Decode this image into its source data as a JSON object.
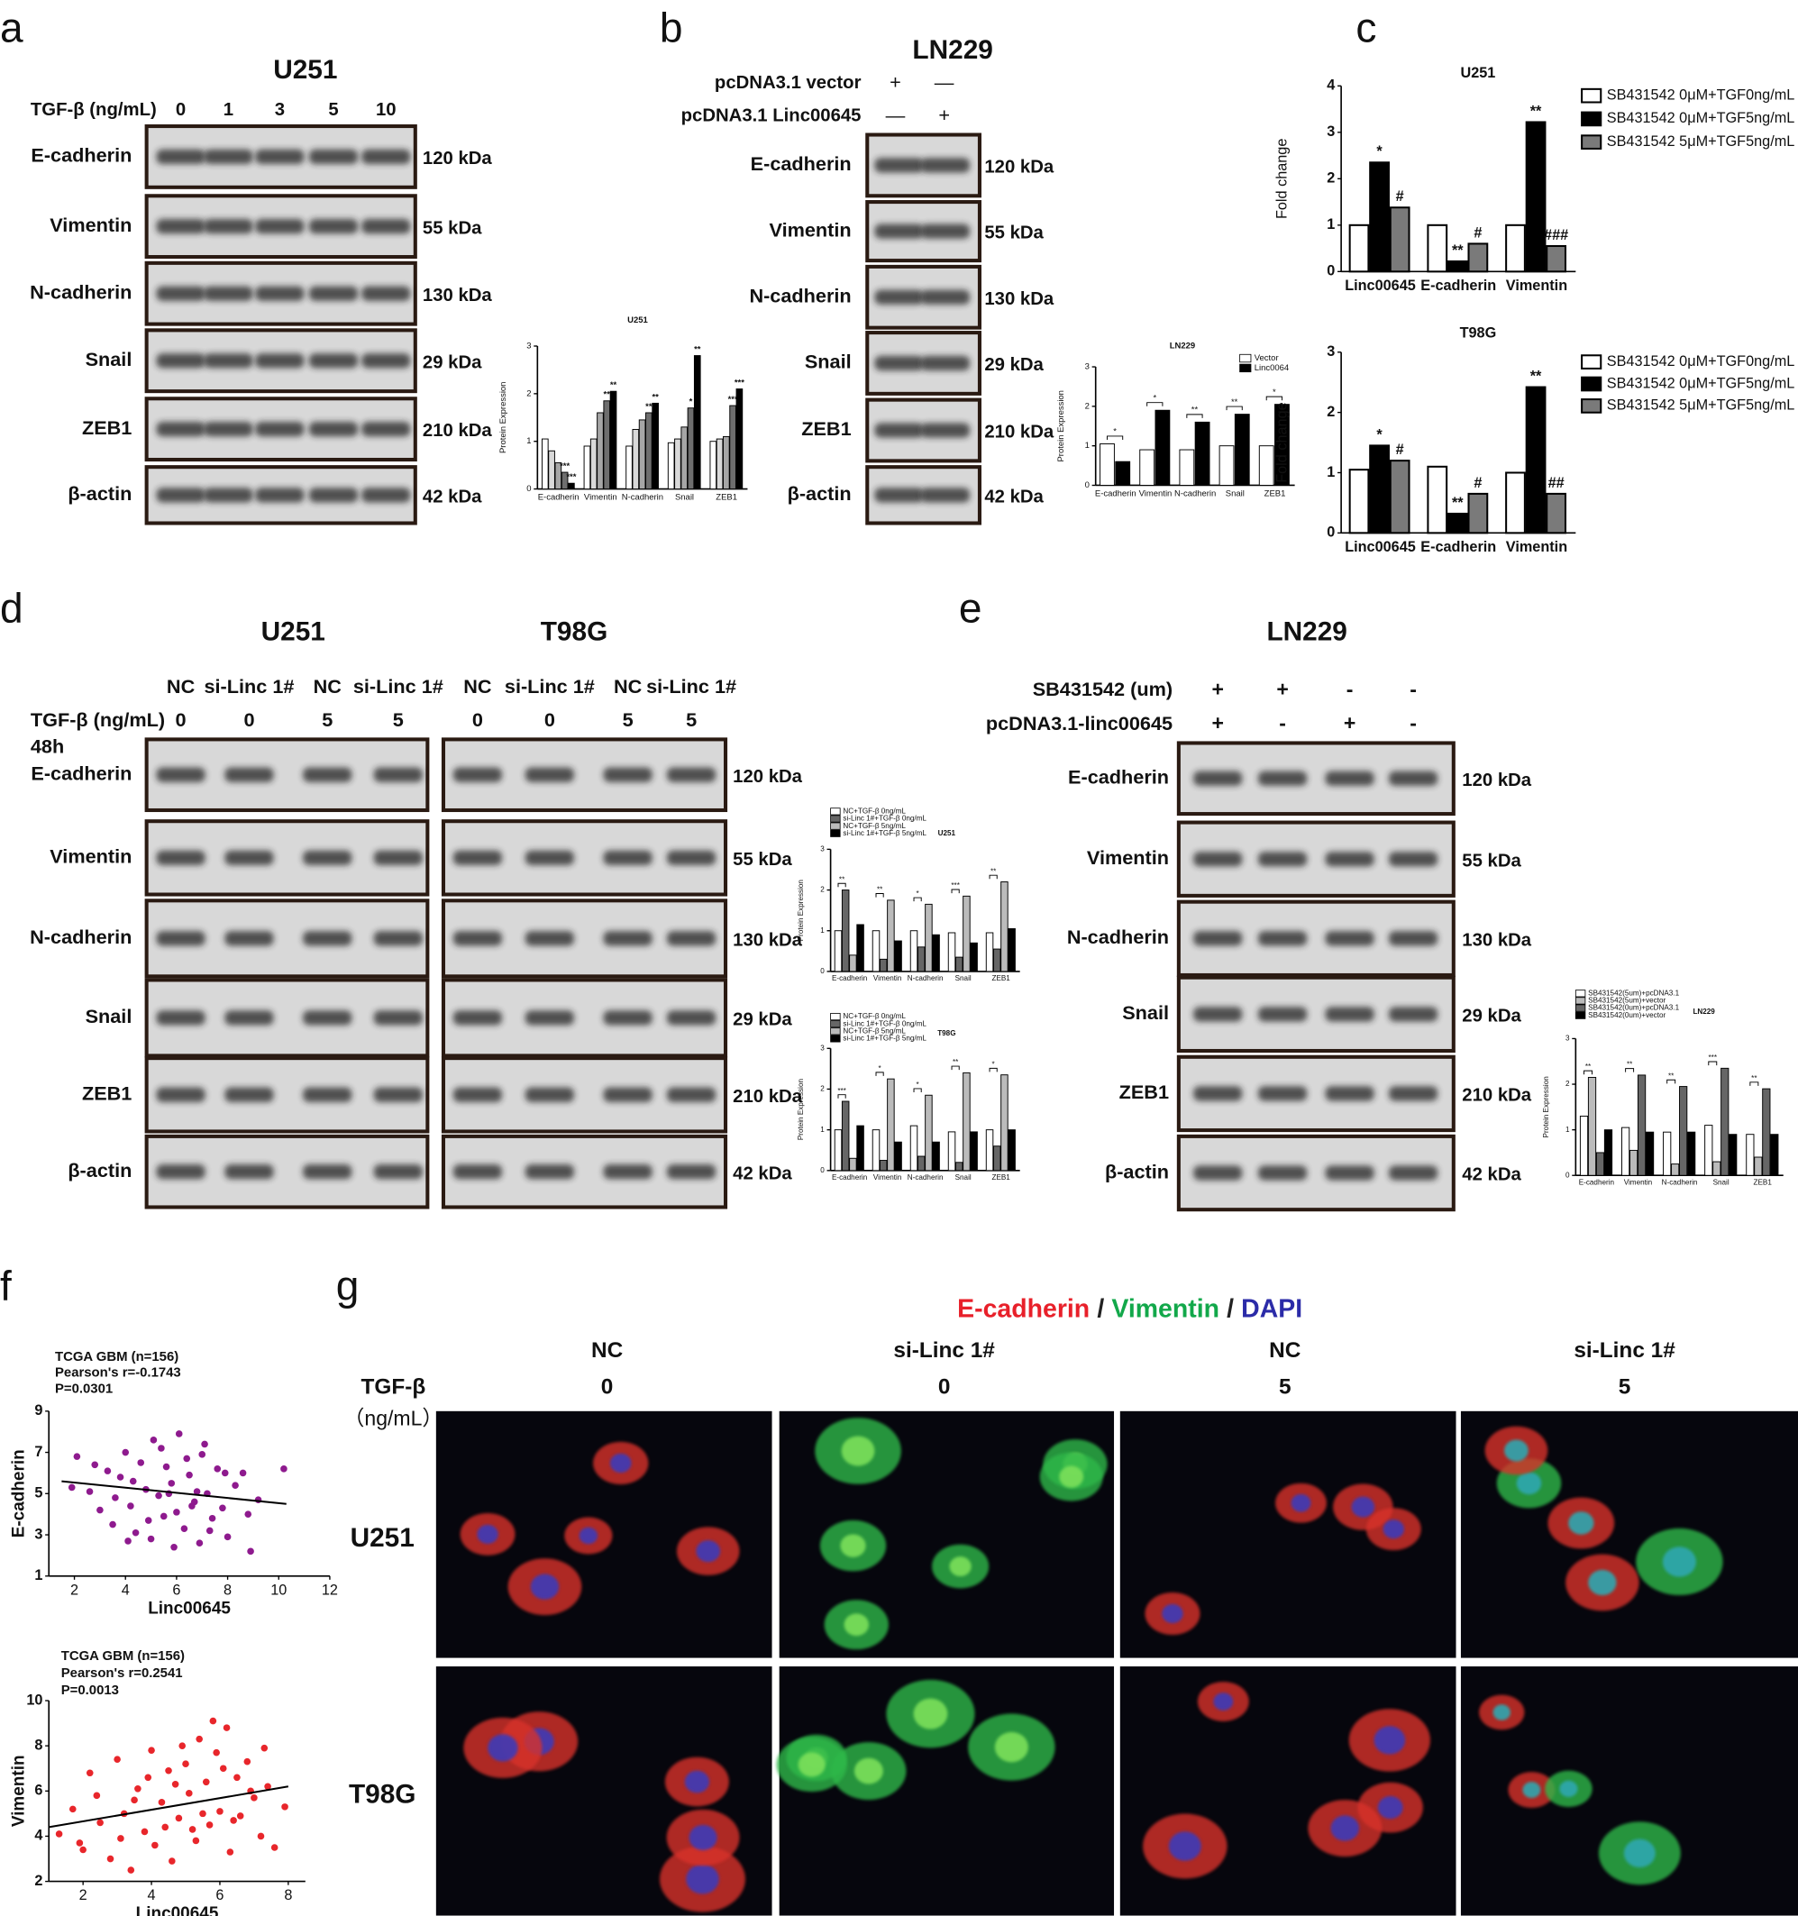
{
  "panel_labels": [
    "a",
    "b",
    "c",
    "d",
    "e",
    "f",
    "g"
  ],
  "blot_a": {
    "title": "U251",
    "treatment_label": "TGF-β (ng/mL)",
    "doses": [
      "0",
      "1",
      "3",
      "5",
      "10"
    ],
    "proteins": [
      "E-cadherin",
      "Vimentin",
      "N-cadherin",
      "Snail",
      "ZEB1",
      "β-actin"
    ],
    "sizes": [
      "120 kDa",
      "55 kDa",
      "130 kDa",
      "29 kDa",
      "210 kDa",
      "42 kDa"
    ]
  },
  "blot_b": {
    "title": "LN229",
    "rows": [
      {
        "label": "pcDNA3.1 vector",
        "marks": [
          "+",
          "—"
        ]
      },
      {
        "label": "pcDNA3.1 Linc00645",
        "marks": [
          "—",
          "+"
        ]
      }
    ],
    "proteins": [
      "E-cadherin",
      "Vimentin",
      "N-cadherin",
      "Snail",
      "ZEB1",
      "β-actin"
    ],
    "sizes": [
      "120 kDa",
      "55 kDa",
      "130 kDa",
      "29 kDa",
      "210 kDa",
      "42 kDa"
    ]
  },
  "blot_d": {
    "titles": [
      "U251",
      "T98G"
    ],
    "groups": [
      "NC",
      "si-Linc 1#",
      "NC",
      "si-Linc 1#",
      "NC",
      "si-Linc 1#",
      "NC",
      "si-Linc 1#"
    ],
    "treatment_label": "TGF-β (ng/mL)",
    "doses": [
      "0",
      "0",
      "5",
      "5",
      "0",
      "0",
      "5",
      "5"
    ],
    "time": "48h",
    "proteins": [
      "E-cadherin",
      "Vimentin",
      "N-cadherin",
      "Snail",
      "ZEB1",
      "β-actin"
    ],
    "sizes": [
      "120 kDa",
      "55 kDa",
      "130 kDa",
      "29 kDa",
      "210 kDa",
      "42 kDa"
    ]
  },
  "blot_e": {
    "title": "LN229",
    "rows": [
      {
        "label": "SB431542 (um)",
        "marks": [
          "+",
          "+",
          "-",
          "-"
        ]
      },
      {
        "label": "pcDNA3.1-linc00645",
        "marks": [
          "+",
          "-",
          "+",
          "-"
        ]
      }
    ],
    "proteins": [
      "E-cadherin",
      "Vimentin",
      "N-cadherin",
      "Snail",
      "ZEB1",
      "β-actin"
    ],
    "sizes": [
      "120 kDa",
      "55 kDa",
      "130 kDa",
      "29 kDa",
      "210 kDa",
      "42 kDa"
    ]
  },
  "chart_data": [
    {
      "type": "bar",
      "title": "U251",
      "y_label": "Protein Expression",
      "categories": [
        "E-cadherin",
        "Vimentin",
        "N-cadherin",
        "Snail",
        "ZEB1"
      ],
      "series": [
        {
          "color": "#ffffff",
          "values": [
            1.05,
            0.9,
            0.9,
            0.97,
            1.0
          ]
        },
        {
          "color": "#d9d9d9",
          "values": [
            0.8,
            1.05,
            1.25,
            1.05,
            1.05
          ]
        },
        {
          "color": "#a6a6a6",
          "values": [
            0.55,
            1.6,
            1.45,
            1.3,
            1.1
          ]
        },
        {
          "color": "#6e6e6e",
          "values": [
            0.35,
            1.85,
            1.6,
            1.7,
            1.75
          ],
          "significance": [
            "***",
            "**",
            "**",
            "*",
            "***"
          ]
        },
        {
          "color": "#000000",
          "values": [
            0.12,
            2.05,
            1.8,
            2.8,
            2.1
          ],
          "significance": [
            "***",
            "**",
            "**",
            "**",
            "***"
          ]
        }
      ],
      "ylim": [
        0,
        3
      ],
      "yticks": [
        0,
        1,
        2,
        3
      ]
    },
    {
      "type": "bar",
      "title": "LN229",
      "y_label": "Protein Expression",
      "categories": [
        "E-cadherin",
        "Vimentin",
        "N-cadherin",
        "Snail",
        "ZEB1"
      ],
      "series": [
        {
          "name": "Vector",
          "color": "#ffffff",
          "values": [
            1.05,
            0.9,
            0.9,
            1.0,
            1.0
          ]
        },
        {
          "name": "Linc0064",
          "color": "#000000",
          "values": [
            0.6,
            1.9,
            1.6,
            1.8,
            2.05
          ]
        }
      ],
      "brackets": [
        "*",
        "*",
        "**",
        "**",
        "*"
      ],
      "ylim": [
        0,
        3
      ],
      "yticks": [
        0,
        1,
        2,
        3
      ]
    },
    {
      "type": "bar",
      "title": "U251",
      "y_label": "Fold change",
      "categories": [
        "Linc00645",
        "E-cadherin",
        "Vimentin"
      ],
      "series": [
        {
          "name": "SB431542 0μM+TGF0ng/mL",
          "color": "#ffffff",
          "values": [
            1.0,
            1.0,
            1.0
          ]
        },
        {
          "name": "SB431542 0μM+TGF5ng/mL",
          "color": "#000000",
          "values": [
            2.35,
            0.22,
            3.22
          ],
          "significance": [
            "*",
            "**",
            "**"
          ]
        },
        {
          "name": "SB431542 5μM+TGF5ng/mL",
          "color": "#7a7a7a",
          "values": [
            1.38,
            0.6,
            0.55
          ],
          "significance": [
            "#",
            "#",
            "###"
          ]
        }
      ],
      "ylim": [
        0,
        4
      ],
      "yticks": [
        0,
        1,
        2,
        3,
        4
      ]
    },
    {
      "type": "bar",
      "title": "T98G",
      "y_label": "Fold change",
      "categories": [
        "Linc00645",
        "E-cadherin",
        "Vimentin"
      ],
      "series": [
        {
          "name": "SB431542 0μM+TGF0ng/mL",
          "color": "#ffffff",
          "values": [
            1.05,
            1.1,
            1.0
          ]
        },
        {
          "name": "SB431542 0μM+TGF5ng/mL",
          "color": "#000000",
          "values": [
            1.45,
            0.32,
            2.42
          ],
          "significance": [
            "*",
            "**",
            "**"
          ]
        },
        {
          "name": "SB431542 5μM+TGF5ng/mL",
          "color": "#7a7a7a",
          "values": [
            1.2,
            0.65,
            0.65
          ],
          "significance": [
            "#",
            "#",
            "##"
          ]
        }
      ],
      "ylim": [
        0,
        3
      ],
      "yticks": [
        0,
        1,
        2,
        3
      ]
    },
    {
      "type": "bar",
      "title": "U251",
      "y_label": "Protein Expression",
      "categories": [
        "E-cadherin",
        "Vimentin",
        "N-cadherin",
        "Snail",
        "ZEB1"
      ],
      "series": [
        {
          "name": "NC+TGF-β 0ng/mL",
          "color": "#ffffff",
          "values": [
            1.0,
            1.0,
            1.0,
            0.95,
            0.95
          ]
        },
        {
          "name": "si-Linc 1#+TGF-β 0ng/mL",
          "color": "#666666",
          "values": [
            2.0,
            0.3,
            0.6,
            0.35,
            0.55
          ]
        },
        {
          "name": "NC+TGF-β 5ng/mL",
          "color": "#bbbbbb",
          "values": [
            0.4,
            1.75,
            1.65,
            1.85,
            2.2
          ]
        },
        {
          "name": "si-Linc 1#+TGF-β 5ng/mL",
          "color": "#000000",
          "values": [
            1.15,
            0.75,
            0.9,
            0.7,
            1.05
          ]
        }
      ],
      "brackets": [
        "**",
        "**",
        "*",
        "***",
        "**"
      ],
      "ylim": [
        0,
        3
      ],
      "yticks": [
        0,
        1,
        2,
        3
      ]
    },
    {
      "type": "bar",
      "title": "T98G",
      "y_label": "Protein Expression",
      "categories": [
        "E-cadherin",
        "Vimentin",
        "N-cadherin",
        "Snail",
        "ZEB1"
      ],
      "series": [
        {
          "name": "NC+TGF-β 0ng/mL",
          "color": "#ffffff",
          "values": [
            1.0,
            1.0,
            1.1,
            0.95,
            1.0
          ]
        },
        {
          "name": "si-Linc 1#+TGF-β 0ng/mL",
          "color": "#666666",
          "values": [
            1.7,
            0.25,
            0.35,
            0.2,
            0.6
          ]
        },
        {
          "name": "NC+TGF-β 5ng/mL",
          "color": "#bbbbbb",
          "values": [
            0.3,
            2.25,
            1.85,
            2.4,
            2.35
          ]
        },
        {
          "name": "si-Linc 1#+TGF-β 5ng/mL",
          "color": "#000000",
          "values": [
            1.1,
            0.7,
            0.7,
            0.95,
            1.0
          ]
        }
      ],
      "brackets": [
        "***",
        "*",
        "*",
        "**",
        "*"
      ],
      "ylim": [
        0,
        3
      ],
      "yticks": [
        0,
        1,
        2,
        3
      ]
    },
    {
      "type": "bar",
      "title": "LN229",
      "y_label": "Protein Expression",
      "categories": [
        "E-cadherin",
        "Vimentin",
        "N-cadherin",
        "Snail",
        "ZEB1"
      ],
      "series": [
        {
          "name": "SB431542(5um)+pcDNA3.1",
          "color": "#ffffff",
          "values": [
            1.3,
            1.05,
            0.95,
            1.1,
            0.9
          ]
        },
        {
          "name": "SB431542(5um)+vector",
          "color": "#bbbbbb",
          "values": [
            2.15,
            0.55,
            0.25,
            0.3,
            0.4
          ]
        },
        {
          "name": "SB431542(0um)+pcDNA3.1",
          "color": "#666666",
          "values": [
            0.5,
            2.2,
            1.95,
            2.35,
            1.9
          ]
        },
        {
          "name": "SB431542(0um)+vector",
          "color": "#000000",
          "values": [
            1.0,
            0.95,
            0.95,
            0.9,
            0.9
          ]
        }
      ],
      "brackets": [
        "**",
        "**",
        "**",
        "***",
        "**"
      ],
      "ylim": [
        0,
        3
      ],
      "yticks": [
        0,
        1,
        2,
        3
      ]
    },
    {
      "type": "scatter",
      "annotations": [
        "TCGA GBM (n=156)",
        "Pearson's r=-0.1743",
        "P=0.0301"
      ],
      "x_label": "Linc00645",
      "y_label": "E-cadherin",
      "color": "#8e1a8e",
      "x": [
        2.1,
        2.6,
        3.0,
        3.3,
        3.5,
        3.8,
        4.0,
        4.2,
        4.4,
        4.6,
        4.8,
        5.0,
        5.1,
        5.3,
        5.5,
        5.6,
        5.8,
        6.0,
        6.1,
        6.3,
        6.5,
        6.7,
        6.9,
        7.0,
        7.2,
        7.4,
        7.6,
        7.8,
        8.0,
        8.3,
        8.6,
        8.9,
        9.2,
        10.2,
        2.8,
        3.6,
        4.3,
        4.9,
        5.4,
        5.9,
        6.4,
        6.8,
        7.3,
        7.9,
        8.8,
        1.9,
        4.1,
        5.7,
        6.6,
        7.1
      ],
      "values": [
        6.8,
        5.1,
        4.2,
        6.1,
        3.5,
        5.8,
        7.0,
        4.4,
        3.1,
        6.5,
        5.2,
        2.8,
        7.6,
        4.9,
        3.9,
        6.3,
        5.5,
        4.1,
        7.9,
        3.3,
        5.9,
        4.6,
        2.6,
        6.9,
        5.0,
        3.8,
        6.2,
        4.3,
        2.9,
        5.4,
        6.0,
        2.2,
        4.7,
        6.2,
        6.4,
        4.8,
        5.6,
        3.7,
        7.2,
        2.4,
        6.7,
        5.1,
        3.2,
        6.0,
        4.0,
        5.3,
        2.7,
        5.0,
        4.4,
        7.4
      ],
      "fit": {
        "x": [
          1.5,
          10.3
        ],
        "y": [
          5.6,
          4.5
        ]
      },
      "xlim": [
        1,
        12
      ],
      "xticks": [
        2,
        4,
        6,
        8,
        10,
        12
      ],
      "ylim": [
        1,
        9
      ],
      "yticks": [
        1,
        3,
        5,
        7,
        9
      ]
    },
    {
      "type": "scatter",
      "annotations": [
        "TCGA GBM (n=156)",
        "Pearson's r=0.2541",
        "P=0.0013"
      ],
      "x_label": "Linc00645",
      "y_label": "Vimentin",
      "color": "#e8262b",
      "x": [
        1.3,
        1.7,
        2.0,
        2.2,
        2.5,
        2.8,
        3.0,
        3.2,
        3.4,
        3.6,
        3.8,
        4.0,
        4.1,
        4.3,
        4.5,
        4.6,
        4.8,
        5.0,
        5.1,
        5.3,
        5.4,
        5.6,
        5.7,
        5.9,
        6.0,
        6.2,
        6.3,
        6.5,
        6.6,
        6.8,
        7.0,
        7.2,
        7.4,
        7.6,
        7.9,
        2.4,
        3.1,
        3.9,
        4.4,
        4.9,
        5.5,
        5.8,
        6.1,
        6.4,
        6.9,
        7.3,
        1.9,
        3.5,
        4.7,
        5.2
      ],
      "values": [
        4.1,
        5.2,
        3.4,
        6.8,
        4.6,
        3.0,
        7.4,
        5.0,
        2.5,
        6.1,
        4.2,
        7.8,
        3.6,
        5.5,
        6.9,
        2.9,
        4.8,
        7.2,
        5.9,
        3.8,
        8.3,
        6.4,
        4.5,
        7.7,
        5.1,
        8.8,
        3.3,
        6.6,
        4.9,
        7.3,
        5.7,
        4.0,
        6.2,
        3.5,
        5.3,
        5.8,
        3.9,
        6.6,
        4.4,
        8.0,
        5.0,
        9.1,
        7.0,
        4.7,
        6.0,
        7.9,
        3.7,
        5.6,
        6.3,
        4.3
      ],
      "fit": {
        "x": [
          1.0,
          8.0
        ],
        "y": [
          4.4,
          6.2
        ]
      },
      "xlim": [
        1,
        8.5
      ],
      "xticks": [
        2,
        4,
        6,
        8
      ],
      "ylim": [
        2,
        10
      ],
      "yticks": [
        2,
        4,
        6,
        8,
        10
      ]
    }
  ],
  "panel_g": {
    "title": [
      {
        "text": "E-cadherin",
        "color": "#e8202a"
      },
      {
        "text": "/",
        "color": "#222222"
      },
      {
        "text": "Vimentin",
        "color": "#12a84a"
      },
      {
        "text": "/",
        "color": "#222222"
      },
      {
        "text": "DAPI",
        "color": "#2b2ba8"
      }
    ],
    "treatment_label": "TGF-β",
    "unit_label": "（ng/mL）",
    "columns": [
      {
        "group": "NC",
        "dose": "0"
      },
      {
        "group": "si-Linc 1#",
        "dose": "0"
      },
      {
        "group": "NC",
        "dose": "5"
      },
      {
        "group": "si-Linc 1#",
        "dose": "5"
      }
    ],
    "rows": [
      "U251",
      "T98G"
    ]
  }
}
